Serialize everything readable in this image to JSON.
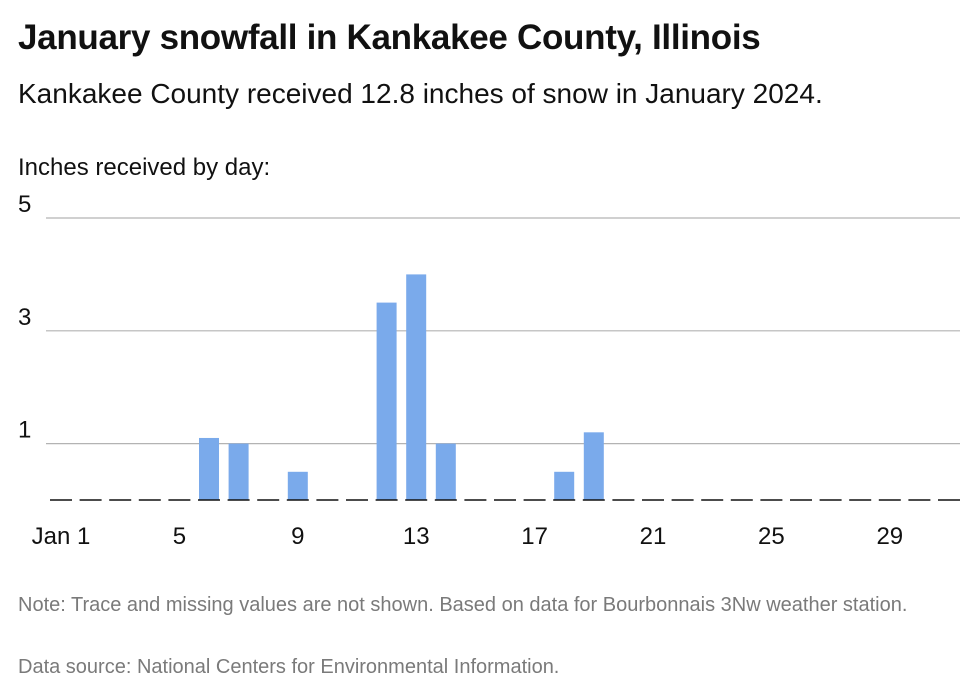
{
  "title": "January snowfall in Kankakee County, Illinois",
  "subtitle": "Kankakee County received 12.8 inches of snow in January 2024.",
  "note": "Note: Trace and missing values are not shown. Based on data for Bourbonnais 3Nw weather station.",
  "source": "Data source: National Centers for Environmental Information.",
  "colors": {
    "bar": "#7aaaeb",
    "grid": "#b3b3b3",
    "axis": "#111111"
  },
  "chart_data": {
    "type": "bar",
    "ylabel": "Inches received by day:",
    "xlabel": "",
    "ylim": [
      0,
      5
    ],
    "yticks": [
      1,
      3,
      5
    ],
    "xlim": [
      1,
      31
    ],
    "xticks": [
      {
        "day": 1,
        "label": "Jan 1"
      },
      {
        "day": 5,
        "label": "5"
      },
      {
        "day": 9,
        "label": "9"
      },
      {
        "day": 13,
        "label": "13"
      },
      {
        "day": 17,
        "label": "17"
      },
      {
        "day": 21,
        "label": "21"
      },
      {
        "day": 25,
        "label": "25"
      },
      {
        "day": 29,
        "label": "29"
      }
    ],
    "grid": true,
    "x": [
      6,
      7,
      9,
      12,
      13,
      14,
      18,
      19
    ],
    "values": [
      1.1,
      1.0,
      0.5,
      3.5,
      4.0,
      1.0,
      0.5,
      1.2
    ]
  }
}
